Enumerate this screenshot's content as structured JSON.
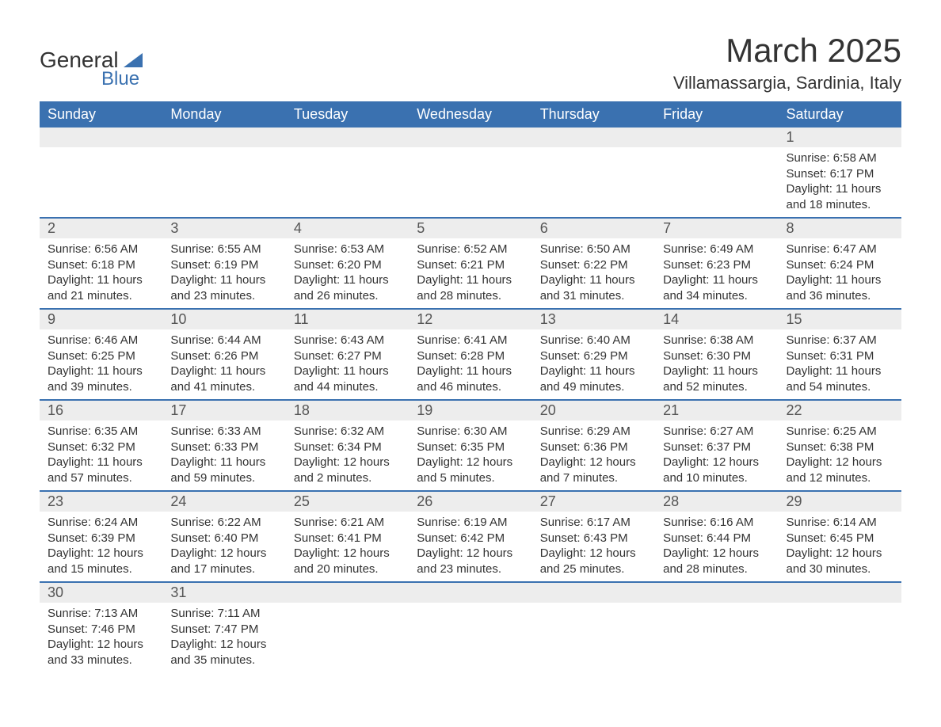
{
  "logo": {
    "text_general": "General",
    "text_blue": "Blue"
  },
  "header": {
    "month_title": "March 2025",
    "location": "Villamassargia, Sardinia, Italy"
  },
  "colors": {
    "header_bg": "#3a71b0",
    "header_text": "#ffffff",
    "daynum_bg": "#ededed",
    "border": "#3a71b0"
  },
  "weekdays": [
    "Sunday",
    "Monday",
    "Tuesday",
    "Wednesday",
    "Thursday",
    "Friday",
    "Saturday"
  ],
  "weeks": [
    [
      null,
      null,
      null,
      null,
      null,
      null,
      {
        "day": "1",
        "sunrise": "Sunrise: 6:58 AM",
        "sunset": "Sunset: 6:17 PM",
        "daylight1": "Daylight: 11 hours",
        "daylight2": "and 18 minutes."
      }
    ],
    [
      {
        "day": "2",
        "sunrise": "Sunrise: 6:56 AM",
        "sunset": "Sunset: 6:18 PM",
        "daylight1": "Daylight: 11 hours",
        "daylight2": "and 21 minutes."
      },
      {
        "day": "3",
        "sunrise": "Sunrise: 6:55 AM",
        "sunset": "Sunset: 6:19 PM",
        "daylight1": "Daylight: 11 hours",
        "daylight2": "and 23 minutes."
      },
      {
        "day": "4",
        "sunrise": "Sunrise: 6:53 AM",
        "sunset": "Sunset: 6:20 PM",
        "daylight1": "Daylight: 11 hours",
        "daylight2": "and 26 minutes."
      },
      {
        "day": "5",
        "sunrise": "Sunrise: 6:52 AM",
        "sunset": "Sunset: 6:21 PM",
        "daylight1": "Daylight: 11 hours",
        "daylight2": "and 28 minutes."
      },
      {
        "day": "6",
        "sunrise": "Sunrise: 6:50 AM",
        "sunset": "Sunset: 6:22 PM",
        "daylight1": "Daylight: 11 hours",
        "daylight2": "and 31 minutes."
      },
      {
        "day": "7",
        "sunrise": "Sunrise: 6:49 AM",
        "sunset": "Sunset: 6:23 PM",
        "daylight1": "Daylight: 11 hours",
        "daylight2": "and 34 minutes."
      },
      {
        "day": "8",
        "sunrise": "Sunrise: 6:47 AM",
        "sunset": "Sunset: 6:24 PM",
        "daylight1": "Daylight: 11 hours",
        "daylight2": "and 36 minutes."
      }
    ],
    [
      {
        "day": "9",
        "sunrise": "Sunrise: 6:46 AM",
        "sunset": "Sunset: 6:25 PM",
        "daylight1": "Daylight: 11 hours",
        "daylight2": "and 39 minutes."
      },
      {
        "day": "10",
        "sunrise": "Sunrise: 6:44 AM",
        "sunset": "Sunset: 6:26 PM",
        "daylight1": "Daylight: 11 hours",
        "daylight2": "and 41 minutes."
      },
      {
        "day": "11",
        "sunrise": "Sunrise: 6:43 AM",
        "sunset": "Sunset: 6:27 PM",
        "daylight1": "Daylight: 11 hours",
        "daylight2": "and 44 minutes."
      },
      {
        "day": "12",
        "sunrise": "Sunrise: 6:41 AM",
        "sunset": "Sunset: 6:28 PM",
        "daylight1": "Daylight: 11 hours",
        "daylight2": "and 46 minutes."
      },
      {
        "day": "13",
        "sunrise": "Sunrise: 6:40 AM",
        "sunset": "Sunset: 6:29 PM",
        "daylight1": "Daylight: 11 hours",
        "daylight2": "and 49 minutes."
      },
      {
        "day": "14",
        "sunrise": "Sunrise: 6:38 AM",
        "sunset": "Sunset: 6:30 PM",
        "daylight1": "Daylight: 11 hours",
        "daylight2": "and 52 minutes."
      },
      {
        "day": "15",
        "sunrise": "Sunrise: 6:37 AM",
        "sunset": "Sunset: 6:31 PM",
        "daylight1": "Daylight: 11 hours",
        "daylight2": "and 54 minutes."
      }
    ],
    [
      {
        "day": "16",
        "sunrise": "Sunrise: 6:35 AM",
        "sunset": "Sunset: 6:32 PM",
        "daylight1": "Daylight: 11 hours",
        "daylight2": "and 57 minutes."
      },
      {
        "day": "17",
        "sunrise": "Sunrise: 6:33 AM",
        "sunset": "Sunset: 6:33 PM",
        "daylight1": "Daylight: 11 hours",
        "daylight2": "and 59 minutes."
      },
      {
        "day": "18",
        "sunrise": "Sunrise: 6:32 AM",
        "sunset": "Sunset: 6:34 PM",
        "daylight1": "Daylight: 12 hours",
        "daylight2": "and 2 minutes."
      },
      {
        "day": "19",
        "sunrise": "Sunrise: 6:30 AM",
        "sunset": "Sunset: 6:35 PM",
        "daylight1": "Daylight: 12 hours",
        "daylight2": "and 5 minutes."
      },
      {
        "day": "20",
        "sunrise": "Sunrise: 6:29 AM",
        "sunset": "Sunset: 6:36 PM",
        "daylight1": "Daylight: 12 hours",
        "daylight2": "and 7 minutes."
      },
      {
        "day": "21",
        "sunrise": "Sunrise: 6:27 AM",
        "sunset": "Sunset: 6:37 PM",
        "daylight1": "Daylight: 12 hours",
        "daylight2": "and 10 minutes."
      },
      {
        "day": "22",
        "sunrise": "Sunrise: 6:25 AM",
        "sunset": "Sunset: 6:38 PM",
        "daylight1": "Daylight: 12 hours",
        "daylight2": "and 12 minutes."
      }
    ],
    [
      {
        "day": "23",
        "sunrise": "Sunrise: 6:24 AM",
        "sunset": "Sunset: 6:39 PM",
        "daylight1": "Daylight: 12 hours",
        "daylight2": "and 15 minutes."
      },
      {
        "day": "24",
        "sunrise": "Sunrise: 6:22 AM",
        "sunset": "Sunset: 6:40 PM",
        "daylight1": "Daylight: 12 hours",
        "daylight2": "and 17 minutes."
      },
      {
        "day": "25",
        "sunrise": "Sunrise: 6:21 AM",
        "sunset": "Sunset: 6:41 PM",
        "daylight1": "Daylight: 12 hours",
        "daylight2": "and 20 minutes."
      },
      {
        "day": "26",
        "sunrise": "Sunrise: 6:19 AM",
        "sunset": "Sunset: 6:42 PM",
        "daylight1": "Daylight: 12 hours",
        "daylight2": "and 23 minutes."
      },
      {
        "day": "27",
        "sunrise": "Sunrise: 6:17 AM",
        "sunset": "Sunset: 6:43 PM",
        "daylight1": "Daylight: 12 hours",
        "daylight2": "and 25 minutes."
      },
      {
        "day": "28",
        "sunrise": "Sunrise: 6:16 AM",
        "sunset": "Sunset: 6:44 PM",
        "daylight1": "Daylight: 12 hours",
        "daylight2": "and 28 minutes."
      },
      {
        "day": "29",
        "sunrise": "Sunrise: 6:14 AM",
        "sunset": "Sunset: 6:45 PM",
        "daylight1": "Daylight: 12 hours",
        "daylight2": "and 30 minutes."
      }
    ],
    [
      {
        "day": "30",
        "sunrise": "Sunrise: 7:13 AM",
        "sunset": "Sunset: 7:46 PM",
        "daylight1": "Daylight: 12 hours",
        "daylight2": "and 33 minutes."
      },
      {
        "day": "31",
        "sunrise": "Sunrise: 7:11 AM",
        "sunset": "Sunset: 7:47 PM",
        "daylight1": "Daylight: 12 hours",
        "daylight2": "and 35 minutes."
      },
      null,
      null,
      null,
      null,
      null
    ]
  ]
}
